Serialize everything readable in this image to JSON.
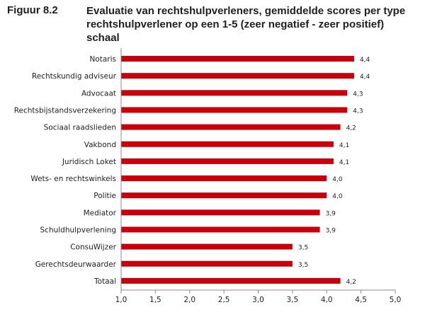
{
  "figure": {
    "label": "Figuur 8.2",
    "title": "Evaluatie van rechtshulpverleners, gemiddelde scores per type rechtshulpverlener op een 1-5 (zeer negatief - zeer positief) schaal"
  },
  "colors": {
    "bar": "#c8000a",
    "axis": "#8c8c8c",
    "text": "#1f1f1f"
  },
  "chart_data": {
    "type": "bar",
    "orientation": "horizontal",
    "categories": [
      "Notaris",
      "Rechtskundig adviseur",
      "Advocaat",
      "Rechtsbijstandsverzekering",
      "Sociaal raadslieden",
      "Vakbond",
      "Juridisch Loket",
      "Wets- en rechtswinkels",
      "Politie",
      "Mediator",
      "Schuldhulpverlening",
      "ConsuWijzer",
      "Gerechtsdeurwaarder",
      "Totaal"
    ],
    "values": [
      4.4,
      4.4,
      4.3,
      4.3,
      4.2,
      4.1,
      4.1,
      4.0,
      4.0,
      3.9,
      3.9,
      3.5,
      3.5,
      4.2
    ],
    "value_labels": [
      "4,4",
      "4,4",
      "4,3",
      "4,3",
      "4,2",
      "4,1",
      "4,1",
      "4,0",
      "4,0",
      "3,9",
      "3,9",
      "3,5",
      "3,5",
      "4,2"
    ],
    "xlim": [
      1.0,
      5.0
    ],
    "xticks": [
      1.0,
      1.5,
      2.0,
      2.5,
      3.0,
      3.5,
      4.0,
      4.5,
      5.0
    ],
    "xtick_labels": [
      "1,0",
      "1,5",
      "2,0",
      "2,5",
      "3,0",
      "3,5",
      "4,0",
      "4,5",
      "5,0"
    ],
    "xlabel": "",
    "ylabel": "",
    "grid": false
  }
}
